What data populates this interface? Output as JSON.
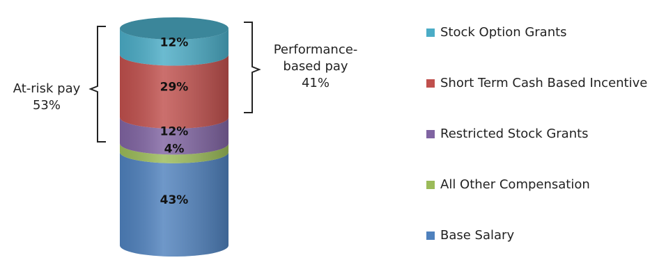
{
  "chart_data": {
    "type": "stacked-cylinder",
    "segments": [
      {
        "name": "Base Salary",
        "value": 43,
        "label": "43%",
        "color": "#4F81BD"
      },
      {
        "name": "All Other Compensation",
        "value": 4,
        "label": "4%",
        "color": "#9BBB59"
      },
      {
        "name": "Restricted Stock Grants",
        "value": 12,
        "label": "12%",
        "color": "#8064A2"
      },
      {
        "name": "Short Term Cash Based Incentive",
        "value": 29,
        "label": "29%",
        "color": "#C0504D"
      },
      {
        "name": "Stock Option Grants",
        "value": 12,
        "label": "12%",
        "color": "#4BACC6"
      }
    ],
    "legend_order": [
      "Stock Option Grants",
      "Short Term Cash Based Incentive",
      "Restricted Stock Grants",
      "All Other Compensation",
      "Base Salary"
    ],
    "legend_position": "right"
  },
  "annotations": {
    "at_risk": {
      "line1": "At-risk pay",
      "line2": "53%"
    },
    "performance": {
      "line1": "Performance-",
      "line2": "based pay",
      "line3": "41%"
    }
  }
}
